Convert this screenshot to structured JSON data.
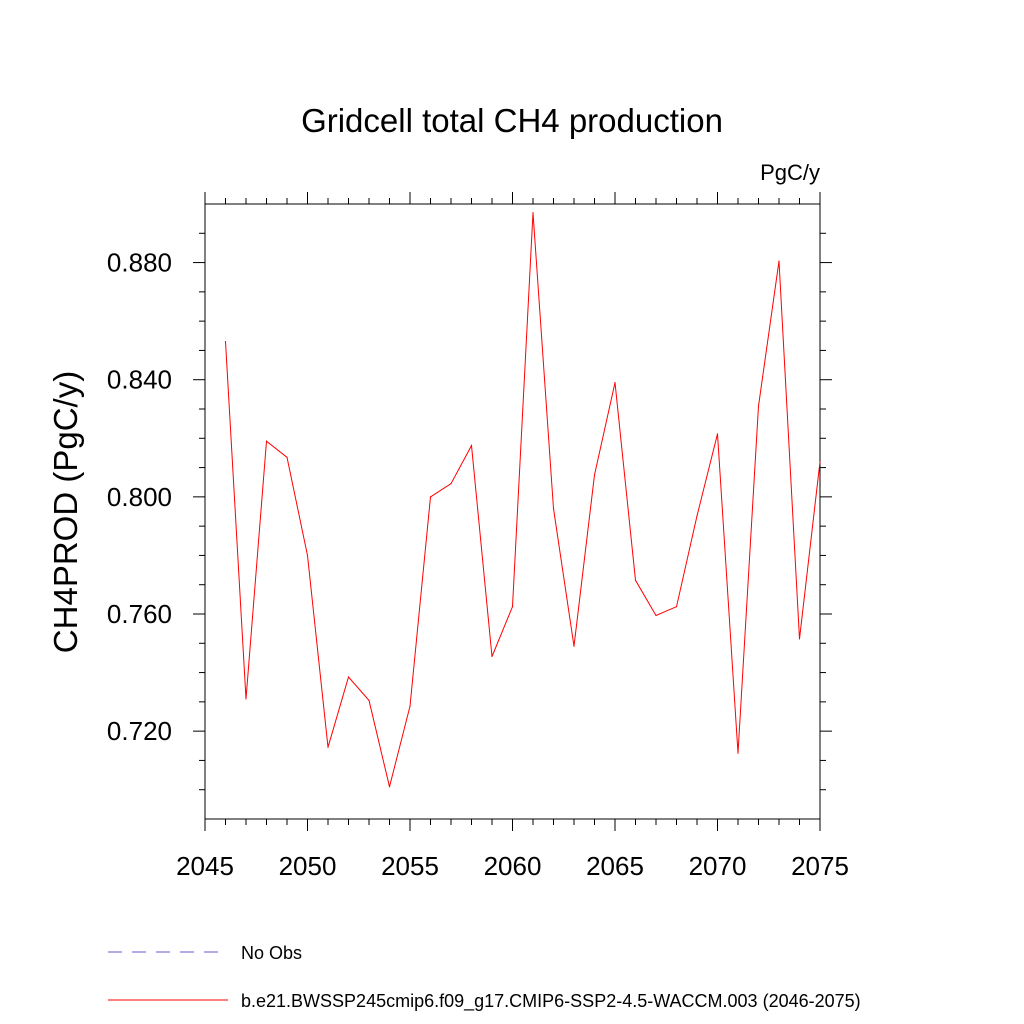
{
  "chart_data": {
    "type": "line",
    "title": "Gridcell total CH4 production",
    "units_label": "PgC/y",
    "xlabel": "",
    "ylabel": "CH4PROD  (PgC/y)",
    "xlim": [
      2045,
      2075
    ],
    "ylim": [
      0.69,
      0.9
    ],
    "x_ticks": [
      2045,
      2050,
      2055,
      2060,
      2065,
      2070,
      2075
    ],
    "y_ticks": [
      0.72,
      0.76,
      0.8,
      0.84,
      0.88
    ],
    "y_tick_labels": [
      "0.720",
      "0.760",
      "0.800",
      "0.840",
      "0.880"
    ],
    "series": [
      {
        "name": "b.e21.BWSSP245cmip6.f09_g17.CMIP6-SSP2-4.5-WACCM.003 (2046-2075)",
        "color": "#ff0000",
        "style": "solid",
        "x": [
          2046,
          2047,
          2048,
          2049,
          2050,
          2051,
          2052,
          2053,
          2054,
          2055,
          2056,
          2057,
          2058,
          2059,
          2060,
          2061,
          2062,
          2063,
          2064,
          2065,
          2066,
          2067,
          2068,
          2069,
          2070,
          2071,
          2072,
          2073,
          2074,
          2075
        ],
        "values": [
          0.853,
          0.731,
          0.819,
          0.8135,
          0.78,
          0.7145,
          0.7385,
          0.7305,
          0.701,
          0.7285,
          0.8,
          0.8045,
          0.8175,
          0.7455,
          0.7625,
          0.897,
          0.796,
          0.749,
          0.8075,
          0.839,
          0.7715,
          0.7595,
          0.7625,
          0.7935,
          0.8215,
          0.7125,
          0.831,
          0.8805,
          0.7515,
          0.812
        ]
      }
    ],
    "legend": [
      {
        "label": "No Obs",
        "color": "#6a5acd",
        "style": "dashed"
      },
      {
        "label": "b.e21.BWSSP245cmip6.f09_g17.CMIP6-SSP2-4.5-WACCM.003 (2046-2075)",
        "color": "#ff0000",
        "style": "solid"
      }
    ]
  }
}
